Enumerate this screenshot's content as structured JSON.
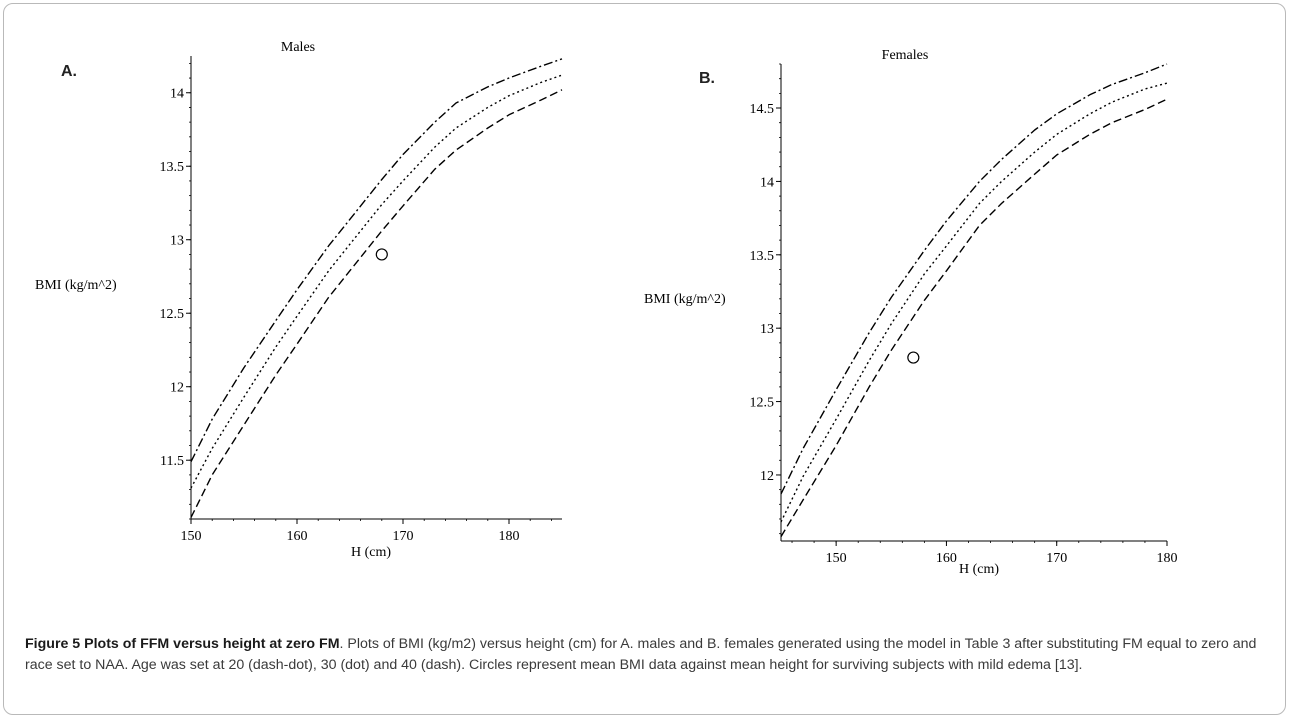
{
  "chart_data": [
    {
      "type": "line",
      "panel_label": "A.",
      "title": "Males",
      "xlabel": "H (cm)",
      "ylabel": "BMI (kg/m^2)",
      "xlim": [
        150,
        185
      ],
      "ylim": [
        11.1,
        14.25
      ],
      "xticks": [
        150,
        160,
        170,
        180
      ],
      "xtick_labels": [
        "150",
        "160",
        "170",
        "180"
      ],
      "yticks": [
        11.5,
        12,
        12.5,
        13,
        13.5,
        14
      ],
      "ytick_labels": [
        "11.5",
        "12",
        "12.5",
        "13",
        "13.5",
        "14"
      ],
      "x": [
        150,
        152,
        155,
        158,
        160,
        163,
        165,
        168,
        170,
        173,
        175,
        178,
        180,
        183,
        185
      ],
      "series": [
        {
          "style": "dash-dot",
          "values": [
            11.49,
            11.78,
            12.13,
            12.45,
            12.66,
            12.96,
            13.14,
            13.41,
            13.58,
            13.8,
            13.93,
            14.04,
            14.1,
            14.18,
            14.23
          ]
        },
        {
          "style": "dot",
          "values": [
            11.31,
            11.58,
            11.93,
            12.27,
            12.48,
            12.79,
            12.97,
            13.24,
            13.4,
            13.63,
            13.76,
            13.9,
            13.98,
            14.07,
            14.12
          ]
        },
        {
          "style": "dash",
          "values": [
            11.11,
            11.4,
            11.74,
            12.08,
            12.29,
            12.61,
            12.79,
            13.06,
            13.23,
            13.48,
            13.61,
            13.76,
            13.85,
            13.95,
            14.02
          ]
        }
      ],
      "points": [
        {
          "x": 168,
          "y": 12.9,
          "marker": "circle"
        }
      ]
    },
    {
      "type": "line",
      "panel_label": "B.",
      "title": "Females",
      "xlabel": "H (cm)",
      "ylabel": "BMI (kg/m^2)",
      "xlim": [
        145,
        180
      ],
      "ylim": [
        11.55,
        14.8
      ],
      "xticks": [
        150,
        160,
        170,
        180
      ],
      "xtick_labels": [
        "150",
        "160",
        "170",
        "180"
      ],
      "yticks": [
        12,
        12.5,
        13,
        13.5,
        14,
        14.5
      ],
      "ytick_labels": [
        "12",
        "12.5",
        "13",
        "13.5",
        "14",
        "14.5"
      ],
      "x": [
        145,
        147,
        150,
        153,
        155,
        158,
        160,
        163,
        165,
        168,
        170,
        173,
        175,
        178,
        180
      ],
      "series": [
        {
          "style": "dash-dot",
          "values": [
            11.87,
            12.18,
            12.58,
            12.97,
            13.21,
            13.53,
            13.73,
            14.0,
            14.15,
            14.35,
            14.46,
            14.59,
            14.66,
            14.74,
            14.8
          ]
        },
        {
          "style": "dot",
          "values": [
            11.68,
            11.99,
            12.38,
            12.78,
            13.03,
            13.37,
            13.56,
            13.85,
            14.0,
            14.2,
            14.32,
            14.46,
            14.54,
            14.63,
            14.67
          ]
        },
        {
          "style": "dash",
          "values": [
            11.58,
            11.83,
            12.2,
            12.6,
            12.85,
            13.19,
            13.39,
            13.7,
            13.85,
            14.05,
            14.18,
            14.32,
            14.4,
            14.49,
            14.56
          ]
        }
      ],
      "points": [
        {
          "x": 157,
          "y": 12.8,
          "marker": "circle"
        }
      ]
    }
  ],
  "caption": {
    "heading": "Figure 5 Plots of FFM versus height at zero FM",
    "text": ". Plots of BMI (kg/m2) versus height (cm) for A. males and B. females generated using the model in Table 3 after substituting FM equal to zero and race set to NAA. Age was set at 20 (dash-dot), 30 (dot) and 40 (dash). Circles represent mean BMI data against mean height for surviving subjects with mild edema [13]."
  }
}
